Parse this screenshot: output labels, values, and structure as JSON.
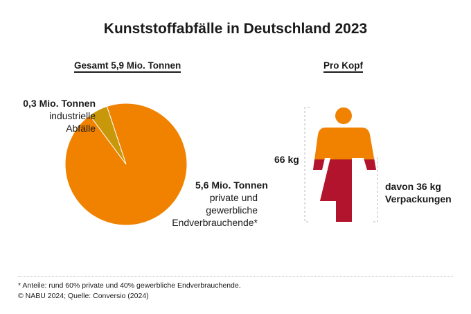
{
  "title": "Kunststoffabfälle in Deutschland 2023",
  "colors": {
    "private": "#F08200",
    "industrial": "#C8980A",
    "packaging": "#B2142D",
    "text": "#1a1a1a"
  },
  "chart_data": [
    {
      "type": "pie",
      "title": "Gesamt 5,9 Mio. Tonnen",
      "unit": "Mio. Tonnen",
      "slices": [
        {
          "name": "private und gewerbliche Endverbrauchende*",
          "value": 5.6,
          "value_label": "5,6 Mio. Tonnen",
          "desc_lines": [
            "private und",
            "gewerbliche",
            "Endverbrauchende*"
          ],
          "color_key": "private"
        },
        {
          "name": "industrielle Abfälle",
          "value": 0.3,
          "value_label": "0,3 Mio. Tonnen",
          "desc_lines": [
            "industrielle",
            "Abfälle"
          ],
          "color_key": "industrial"
        }
      ]
    },
    {
      "type": "bar",
      "title": "Pro Kopf",
      "unit": "kg",
      "total": 66,
      "total_label": "66 kg",
      "part": 36,
      "part_label_lines": [
        "davon 36 kg",
        "Verpackungen"
      ]
    }
  ],
  "footnote": "* Anteile: rund 60% private und 40% gewerbliche Endverbrauchende.",
  "source": "© NABU 2024; Quelle: Conversio (2024)"
}
